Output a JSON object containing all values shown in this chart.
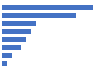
{
  "values": [
    28500,
    23000,
    10500,
    9000,
    7500,
    6000,
    3000,
    1500
  ],
  "bar_color": "#4472c4",
  "background_color": "#ffffff",
  "ylim": [
    0,
    30000
  ],
  "bar_height": 0.65,
  "edge_color": "none"
}
